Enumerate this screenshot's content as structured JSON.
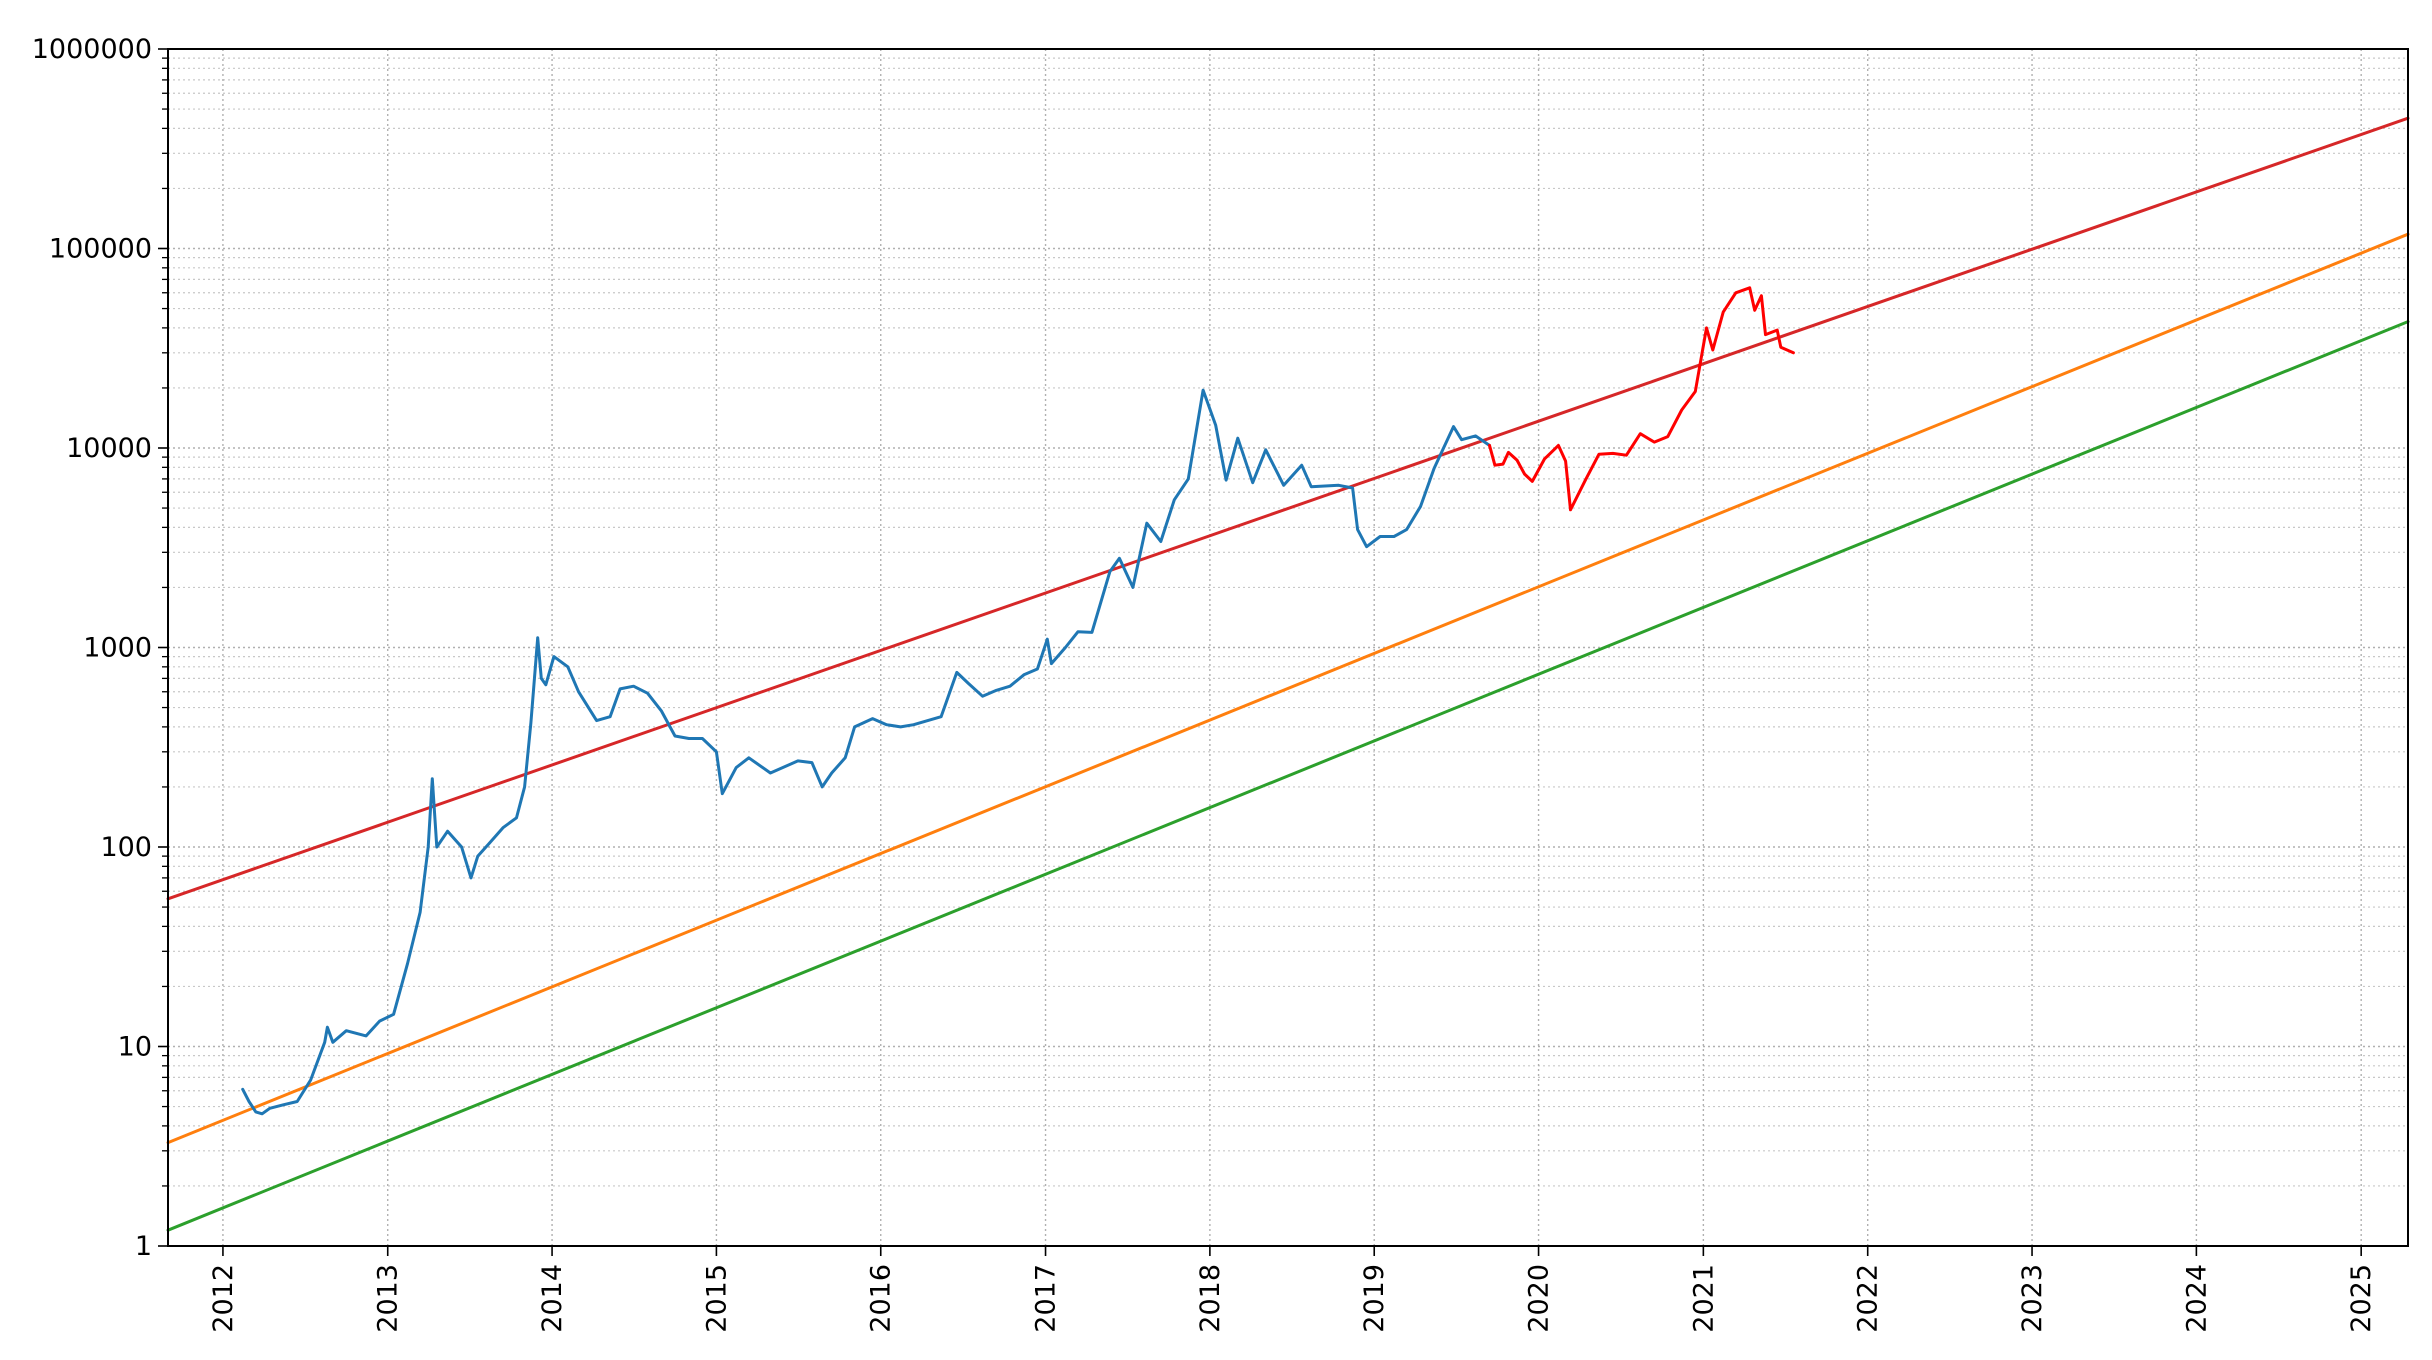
{
  "chart_data": {
    "type": "line",
    "title": "",
    "xlabel": "",
    "ylabel": "",
    "y_scale": "log",
    "ylim": [
      1,
      1000000
    ],
    "xlim": [
      "2011-09-01",
      "2025-04-15"
    ],
    "grid": true,
    "legend": "none",
    "y_ticks": [
      {
        "value": 1,
        "label": "1"
      },
      {
        "value": 10,
        "label": "10"
      },
      {
        "value": 100,
        "label": "100"
      },
      {
        "value": 1000,
        "label": "1000"
      },
      {
        "value": 10000,
        "label": "10000"
      },
      {
        "value": 100000,
        "label": "100000"
      },
      {
        "value": 1000000,
        "label": "1000000"
      }
    ],
    "x_ticks": [
      {
        "date": "2012-01-01",
        "label": "2012"
      },
      {
        "date": "2013-01-01",
        "label": "2013"
      },
      {
        "date": "2014-01-01",
        "label": "2014"
      },
      {
        "date": "2015-01-01",
        "label": "2015"
      },
      {
        "date": "2016-01-01",
        "label": "2016"
      },
      {
        "date": "2017-01-01",
        "label": "2017"
      },
      {
        "date": "2018-01-01",
        "label": "2018"
      },
      {
        "date": "2019-01-01",
        "label": "2019"
      },
      {
        "date": "2020-01-01",
        "label": "2020"
      },
      {
        "date": "2021-01-01",
        "label": "2021"
      },
      {
        "date": "2022-01-01",
        "label": "2022"
      },
      {
        "date": "2023-01-01",
        "label": "2023"
      },
      {
        "date": "2024-01-01",
        "label": "2024"
      },
      {
        "date": "2025-01-01",
        "label": "2025"
      }
    ],
    "series": [
      {
        "color": "#d62728",
        "points": [
          [
            "2011-09-01",
            55
          ],
          [
            "2025-04-15",
            450000
          ]
        ]
      },
      {
        "color": "#ff7f0e",
        "points": [
          [
            "2011-09-01",
            3.3
          ],
          [
            "2025-04-15",
            118000
          ]
        ]
      },
      {
        "color": "#2ca02c",
        "points": [
          [
            "2011-09-01",
            1.2
          ],
          [
            "2025-04-15",
            43000
          ]
        ]
      },
      {
        "color": "#1f77b4",
        "points": [
          [
            "2012-02-14",
            6.1
          ],
          [
            "2012-02-28",
            5.3
          ],
          [
            "2012-03-14",
            4.7
          ],
          [
            "2012-03-28",
            4.6
          ],
          [
            "2012-04-14",
            4.9
          ],
          [
            "2012-05-14",
            5.1
          ],
          [
            "2012-06-14",
            5.3
          ],
          [
            "2012-07-14",
            6.8
          ],
          [
            "2012-08-14",
            10.5
          ],
          [
            "2012-08-20",
            12.5
          ],
          [
            "2012-09-01",
            10.5
          ],
          [
            "2012-10-01",
            12.0
          ],
          [
            "2012-11-14",
            11.3
          ],
          [
            "2012-12-14",
            13.4
          ],
          [
            "2013-01-14",
            14.5
          ],
          [
            "2013-02-14",
            26
          ],
          [
            "2013-03-14",
            47
          ],
          [
            "2013-04-01",
            100
          ],
          [
            "2013-04-10",
            220
          ],
          [
            "2013-04-20",
            100
          ],
          [
            "2013-05-14",
            120
          ],
          [
            "2013-06-14",
            100
          ],
          [
            "2013-07-05",
            70
          ],
          [
            "2013-07-20",
            90
          ],
          [
            "2013-08-14",
            104
          ],
          [
            "2013-09-14",
            125
          ],
          [
            "2013-10-14",
            140
          ],
          [
            "2013-11-01",
            200
          ],
          [
            "2013-11-15",
            420
          ],
          [
            "2013-11-30",
            1120
          ],
          [
            "2013-12-08",
            700
          ],
          [
            "2013-12-18",
            650
          ],
          [
            "2014-01-05",
            900
          ],
          [
            "2014-02-05",
            800
          ],
          [
            "2014-03-01",
            600
          ],
          [
            "2014-04-10",
            430
          ],
          [
            "2014-05-10",
            450
          ],
          [
            "2014-06-01",
            620
          ],
          [
            "2014-07-01",
            640
          ],
          [
            "2014-08-01",
            590
          ],
          [
            "2014-09-01",
            480
          ],
          [
            "2014-10-01",
            360
          ],
          [
            "2014-11-01",
            350
          ],
          [
            "2014-12-01",
            350
          ],
          [
            "2015-01-01",
            300
          ],
          [
            "2015-01-14",
            185
          ],
          [
            "2015-02-14",
            250
          ],
          [
            "2015-03-14",
            280
          ],
          [
            "2015-05-01",
            235
          ],
          [
            "2015-07-01",
            270
          ],
          [
            "2015-08-01",
            265
          ],
          [
            "2015-08-24",
            200
          ],
          [
            "2015-09-14",
            235
          ],
          [
            "2015-10-14",
            280
          ],
          [
            "2015-11-04",
            400
          ],
          [
            "2015-12-14",
            440
          ],
          [
            "2016-01-14",
            410
          ],
          [
            "2016-02-14",
            400
          ],
          [
            "2016-03-14",
            410
          ],
          [
            "2016-05-14",
            450
          ],
          [
            "2016-06-18",
            750
          ],
          [
            "2016-07-14",
            660
          ],
          [
            "2016-08-14",
            570
          ],
          [
            "2016-09-14",
            610
          ],
          [
            "2016-10-14",
            640
          ],
          [
            "2016-11-14",
            730
          ],
          [
            "2016-12-14",
            780
          ],
          [
            "2017-01-05",
            1100
          ],
          [
            "2017-01-14",
            830
          ],
          [
            "2017-02-14",
            1000
          ],
          [
            "2017-03-14",
            1200
          ],
          [
            "2017-04-14",
            1190
          ],
          [
            "2017-05-24",
            2400
          ],
          [
            "2017-06-14",
            2800
          ],
          [
            "2017-07-14",
            2000
          ],
          [
            "2017-08-14",
            4200
          ],
          [
            "2017-09-14",
            3400
          ],
          [
            "2017-10-14",
            5500
          ],
          [
            "2017-11-14",
            7000
          ],
          [
            "2017-12-17",
            19500
          ],
          [
            "2018-01-14",
            13000
          ],
          [
            "2018-02-06",
            6900
          ],
          [
            "2018-03-04",
            11200
          ],
          [
            "2018-04-06",
            6700
          ],
          [
            "2018-05-05",
            9800
          ],
          [
            "2018-06-14",
            6500
          ],
          [
            "2018-07-24",
            8200
          ],
          [
            "2018-08-14",
            6400
          ],
          [
            "2018-10-14",
            6500
          ],
          [
            "2018-11-14",
            6300
          ],
          [
            "2018-11-25",
            3900
          ],
          [
            "2018-12-15",
            3200
          ],
          [
            "2019-01-14",
            3600
          ],
          [
            "2019-02-14",
            3600
          ],
          [
            "2019-03-14",
            3900
          ],
          [
            "2019-04-14",
            5100
          ],
          [
            "2019-05-14",
            7900
          ],
          [
            "2019-06-26",
            12800
          ],
          [
            "2019-07-14",
            11000
          ],
          [
            "2019-08-14",
            11500
          ],
          [
            "2019-09-14",
            10300
          ]
        ]
      },
      {
        "color": "#ff0000",
        "points": [
          [
            "2019-09-14",
            10300
          ],
          [
            "2019-09-26",
            8200
          ],
          [
            "2019-10-14",
            8300
          ],
          [
            "2019-10-26",
            9500
          ],
          [
            "2019-11-14",
            8700
          ],
          [
            "2019-12-01",
            7400
          ],
          [
            "2019-12-18",
            6800
          ],
          [
            "2020-01-14",
            8800
          ],
          [
            "2020-02-14",
            10300
          ],
          [
            "2020-03-01",
            8600
          ],
          [
            "2020-03-12",
            4900
          ],
          [
            "2020-04-14",
            6900
          ],
          [
            "2020-05-14",
            9300
          ],
          [
            "2020-06-14",
            9400
          ],
          [
            "2020-07-14",
            9200
          ],
          [
            "2020-08-14",
            11800
          ],
          [
            "2020-09-14",
            10700
          ],
          [
            "2020-10-14",
            11400
          ],
          [
            "2020-11-14",
            15500
          ],
          [
            "2020-12-14",
            19200
          ],
          [
            "2021-01-08",
            40000
          ],
          [
            "2021-01-22",
            31000
          ],
          [
            "2021-02-14",
            48000
          ],
          [
            "2021-03-14",
            60000
          ],
          [
            "2021-04-14",
            63500
          ],
          [
            "2021-04-25",
            49000
          ],
          [
            "2021-05-10",
            58000
          ],
          [
            "2021-05-19",
            37000
          ],
          [
            "2021-06-14",
            39000
          ],
          [
            "2021-06-22",
            32000
          ],
          [
            "2021-07-20",
            30000
          ]
        ]
      }
    ]
  }
}
